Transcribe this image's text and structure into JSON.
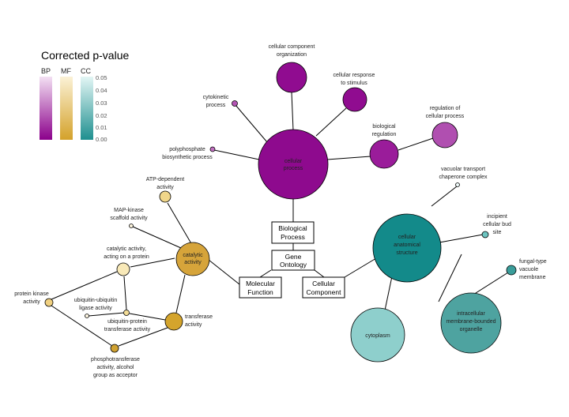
{
  "legend": {
    "title": "Corrected p-value",
    "columns": [
      {
        "label": "BP",
        "color_low": "#8b008b",
        "color_high": "#f3e0f3"
      },
      {
        "label": "MF",
        "color_low": "#d4a22a",
        "color_high": "#fbf2d6"
      },
      {
        "label": "CC",
        "color_low": "#1e8f8f",
        "color_high": "#e3f6f5"
      }
    ],
    "ticks": [
      "0.05",
      "0.04",
      "0.03",
      "0.02",
      "0.01",
      "0.00"
    ]
  },
  "root": {
    "label_line1": "Gene",
    "label_line2": "Ontology"
  },
  "categories": {
    "bp": {
      "label_line1": "Biological",
      "label_line2": "Process"
    },
    "mf": {
      "label_line1": "Molecular",
      "label_line2": "Function"
    },
    "cc": {
      "label_line1": "Cellular",
      "label_line2": "Component"
    }
  },
  "nodes": {
    "cellular_process": {
      "lines": [
        "cellular",
        "process"
      ],
      "color": "#8e0a8e"
    },
    "cellular_component_organization": {
      "lines": [
        "cellular component",
        "organization"
      ],
      "color": "#900c90"
    },
    "cellular_response_to_stimulus": {
      "lines": [
        "cellular response",
        "to stimulus"
      ],
      "color": "#900c90"
    },
    "cytokinetic_process": {
      "lines": [
        "cytokinetic",
        "process"
      ],
      "color": "#b354b3"
    },
    "biological_regulation": {
      "lines": [
        "biological",
        "regulation"
      ],
      "color": "#9a1c9a"
    },
    "regulation_of_cellular_process": {
      "lines": [
        "regulation of",
        "cellular process"
      ],
      "color": "#b04fb0"
    },
    "polyphosphate_biosynthetic_process": {
      "lines": [
        "polyphosphate",
        "biosynthetic process"
      ],
      "color": "#c170c1"
    },
    "catalytic_activity": {
      "lines": [
        "catalytic",
        "activity"
      ],
      "color": "#d6a43a"
    },
    "atp_dependent_activity": {
      "lines": [
        "ATP-dependent",
        "activity"
      ],
      "color": "#f0d68a"
    },
    "map_kinase_scaffold_activity": {
      "lines": [
        "MAP-kinase",
        "scaffold activity"
      ],
      "color": "#fcf4dc"
    },
    "catalytic_activity_acting_on_protein": {
      "lines": [
        "catalytic activity,",
        "acting on a protein"
      ],
      "color": "#f8e9b8"
    },
    "protein_kinase_activity": {
      "lines": [
        "protein kinase",
        "activity"
      ],
      "color": "#f0d080"
    },
    "ubiquitin_ubiquitin_ligase_activity": {
      "lines": [
        "ubiquitin-ubiquitin",
        "ligase activity"
      ],
      "color": "#fdf6e2"
    },
    "ubiquitin_protein_transferase_activity": {
      "lines": [
        "ubiquitin-protein",
        "transferase activity"
      ],
      "color": "#f3dc96"
    },
    "transferase_activity": {
      "lines": [
        "transferase",
        "activity"
      ],
      "color": "#d4a42c"
    },
    "phosphotransferase_activity": {
      "lines": [
        "phosphotransferase",
        "activity, alcohol",
        "group as acceptor"
      ],
      "color": "#d0a232"
    },
    "cellular_anatomical_structure": {
      "lines": [
        "cellular",
        "anatomical",
        "structure"
      ],
      "color": "#138a8a"
    },
    "vacuolar_transport_chaperone_complex": {
      "lines": [
        "vacuolar transport",
        "chaperone complex"
      ],
      "color": "#eefaf9"
    },
    "incipient_cellular_bud_site": {
      "lines": [
        "incipient",
        "cellular bud",
        "site"
      ],
      "color": "#6cc4c0"
    },
    "fungal_type_vacuole_membrane": {
      "lines": [
        "fungal-type",
        "vacuole",
        "membrane"
      ],
      "color": "#3a9d9a"
    },
    "cytoplasm": {
      "lines": [
        "cytoplasm"
      ],
      "color": "#8ecfcc"
    },
    "intracellular_membrane_bounded_organelle": {
      "lines": [
        "intracellular",
        "membrane-bounded",
        "organelle"
      ],
      "color": "#4ea3a0"
    }
  }
}
